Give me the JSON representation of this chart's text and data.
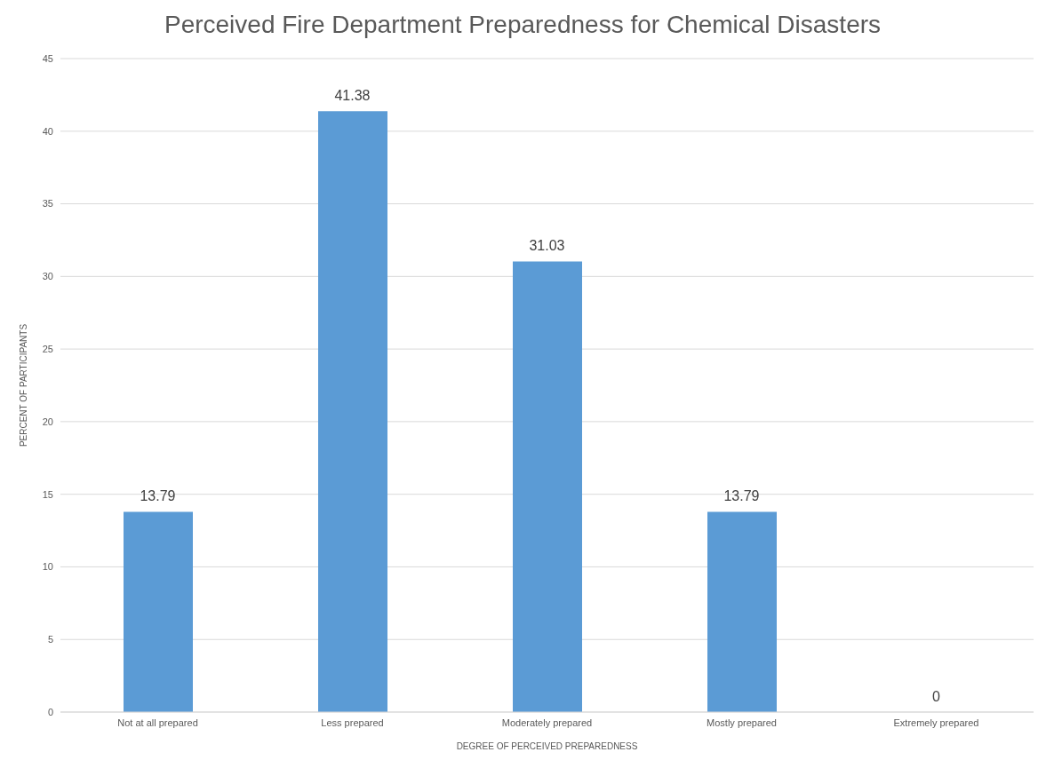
{
  "chart_data": {
    "type": "bar",
    "title": "Perceived Fire Department Preparedness for Chemical Disasters",
    "xlabel": "DEGREE OF PERCEIVED PREPAREDNESS",
    "ylabel": "PERCENT OF PARTICIPANTS",
    "categories": [
      "Not at all prepared",
      "Less prepared",
      "Moderately prepared",
      "Mostly prepared",
      "Extremely prepared"
    ],
    "values": [
      13.79,
      41.38,
      31.03,
      13.79,
      0
    ],
    "color": "#5b9bd5",
    "ylim": [
      0,
      45
    ],
    "yticks": [
      0,
      5,
      10,
      15,
      20,
      25,
      30,
      35,
      40,
      45
    ],
    "grid": "y",
    "data_labels": true
  }
}
